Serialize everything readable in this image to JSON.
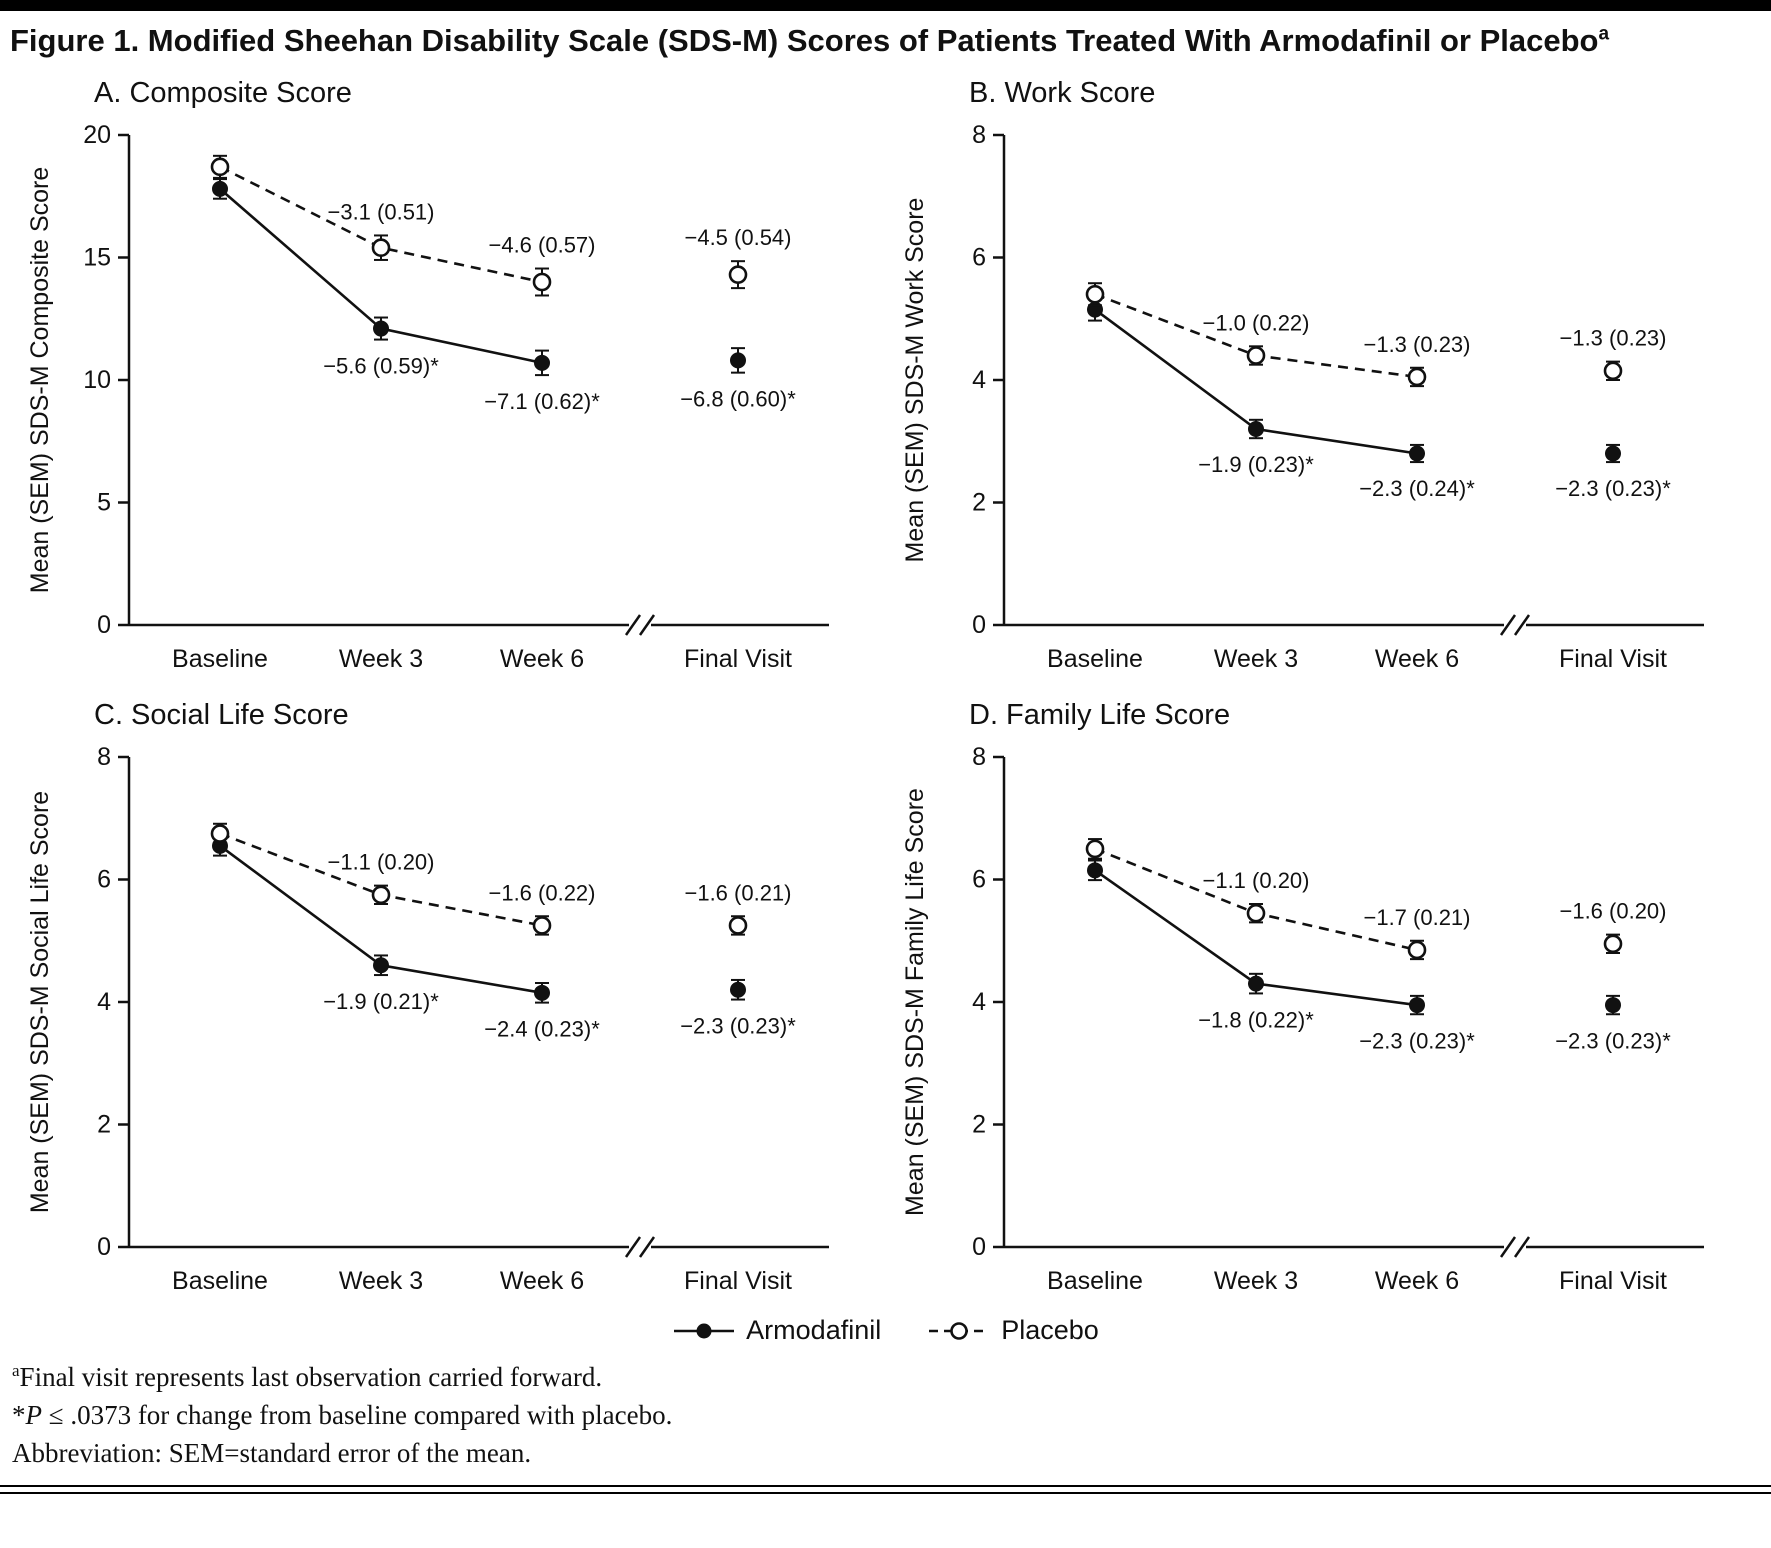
{
  "page": {
    "title": "Figure 1. Modified Sheehan Disability Scale (SDS-M) Scores of Patients Treated With Armodafinil or Placebo",
    "title_superscript": "a"
  },
  "legend": {
    "position": "bottom",
    "items": [
      {
        "label": "Armodafinil",
        "marker": "filled",
        "line": "solid"
      },
      {
        "label": "Placebo",
        "marker": "open",
        "line": "dashed"
      }
    ]
  },
  "footnotes": [
    {
      "sup": "a",
      "text": "Final visit represents last observation carried forward."
    },
    {
      "prefix": "*",
      "italic_var": "P",
      "text": " ≤ .0373 for change from baseline compared with placebo."
    },
    {
      "text": "Abbreviation: SEM=standard error of the mean."
    }
  ],
  "chart_data": [
    {
      "type": "line",
      "panel_label": "A. Composite Score",
      "ylabel": "Mean (SEM) SDS-M Composite Score",
      "ylim": [
        0,
        20
      ],
      "yticks": [
        0,
        5,
        10,
        15,
        20
      ],
      "categories": [
        "Baseline",
        "Week 3",
        "Week 6",
        "Final Visit"
      ],
      "axis_break_after": "Week 6",
      "grid": false,
      "series": [
        {
          "name": "Armodafinil",
          "marker": "filled",
          "line": "solid",
          "annotation_side": "below",
          "values": [
            17.8,
            12.1,
            10.7,
            10.8
          ],
          "sem": [
            0.4,
            0.45,
            0.5,
            0.5
          ],
          "annotations": [
            null,
            "−5.6 (0.59)*",
            "−7.1 (0.62)*",
            "−6.8 (0.60)*"
          ]
        },
        {
          "name": "Placebo",
          "marker": "open",
          "line": "dashed",
          "annotation_side": "above",
          "values": [
            18.7,
            15.4,
            14.0,
            14.3
          ],
          "sem": [
            0.45,
            0.5,
            0.55,
            0.55
          ],
          "annotations": [
            null,
            "−3.1 (0.51)",
            "−4.6 (0.57)",
            "−4.5 (0.54)"
          ]
        }
      ]
    },
    {
      "type": "line",
      "panel_label": "B. Work Score",
      "ylabel": "Mean (SEM) SDS-M Work Score",
      "ylim": [
        0,
        8
      ],
      "yticks": [
        0,
        2,
        4,
        6,
        8
      ],
      "categories": [
        "Baseline",
        "Week 3",
        "Week 6",
        "Final Visit"
      ],
      "axis_break_after": "Week 6",
      "grid": false,
      "series": [
        {
          "name": "Armodafinil",
          "marker": "filled",
          "line": "solid",
          "annotation_side": "below",
          "values": [
            5.15,
            3.2,
            2.8,
            2.8
          ],
          "sem": [
            0.18,
            0.15,
            0.14,
            0.14
          ],
          "annotations": [
            null,
            "−1.9 (0.23)*",
            "−2.3 (0.24)*",
            "−2.3 (0.23)*"
          ]
        },
        {
          "name": "Placebo",
          "marker": "open",
          "line": "dashed",
          "annotation_side": "above",
          "values": [
            5.4,
            4.4,
            4.05,
            4.15
          ],
          "sem": [
            0.18,
            0.15,
            0.15,
            0.15
          ],
          "annotations": [
            null,
            "−1.0 (0.22)",
            "−1.3 (0.23)",
            "−1.3 (0.23)"
          ]
        }
      ]
    },
    {
      "type": "line",
      "panel_label": "C. Social Life Score",
      "ylabel": "Mean (SEM) SDS-M Social Life Score",
      "ylim": [
        0,
        8
      ],
      "yticks": [
        0,
        2,
        4,
        6,
        8
      ],
      "categories": [
        "Baseline",
        "Week 3",
        "Week 6",
        "Final Visit"
      ],
      "axis_break_after": "Week 6",
      "grid": false,
      "series": [
        {
          "name": "Armodafinil",
          "marker": "filled",
          "line": "solid",
          "annotation_side": "below",
          "values": [
            6.55,
            4.6,
            4.15,
            4.2
          ],
          "sem": [
            0.16,
            0.16,
            0.16,
            0.16
          ],
          "annotations": [
            null,
            "−1.9 (0.21)*",
            "−2.4 (0.23)*",
            "−2.3 (0.23)*"
          ]
        },
        {
          "name": "Placebo",
          "marker": "open",
          "line": "dashed",
          "annotation_side": "above",
          "values": [
            6.75,
            5.75,
            5.25,
            5.25
          ],
          "sem": [
            0.16,
            0.15,
            0.15,
            0.15
          ],
          "annotations": [
            null,
            "−1.1 (0.20)",
            "−1.6 (0.22)",
            "−1.6 (0.21)"
          ]
        }
      ]
    },
    {
      "type": "line",
      "panel_label": "D. Family Life Score",
      "ylabel": "Mean (SEM) SDS-M Family Life Score",
      "ylim": [
        0,
        8
      ],
      "yticks": [
        0,
        2,
        4,
        6,
        8
      ],
      "categories": [
        "Baseline",
        "Week 3",
        "Week 6",
        "Final Visit"
      ],
      "axis_break_after": "Week 6",
      "grid": false,
      "series": [
        {
          "name": "Armodafinil",
          "marker": "filled",
          "line": "solid",
          "annotation_side": "below",
          "values": [
            6.15,
            4.3,
            3.95,
            3.95
          ],
          "sem": [
            0.16,
            0.16,
            0.15,
            0.15
          ],
          "annotations": [
            null,
            "−1.8 (0.22)*",
            "−2.3 (0.23)*",
            "−2.3 (0.23)*"
          ]
        },
        {
          "name": "Placebo",
          "marker": "open",
          "line": "dashed",
          "annotation_side": "above",
          "values": [
            6.5,
            5.45,
            4.85,
            4.95
          ],
          "sem": [
            0.16,
            0.15,
            0.15,
            0.15
          ],
          "annotations": [
            null,
            "−1.1 (0.20)",
            "−1.7 (0.21)",
            "−1.6 (0.20)"
          ]
        }
      ]
    }
  ]
}
